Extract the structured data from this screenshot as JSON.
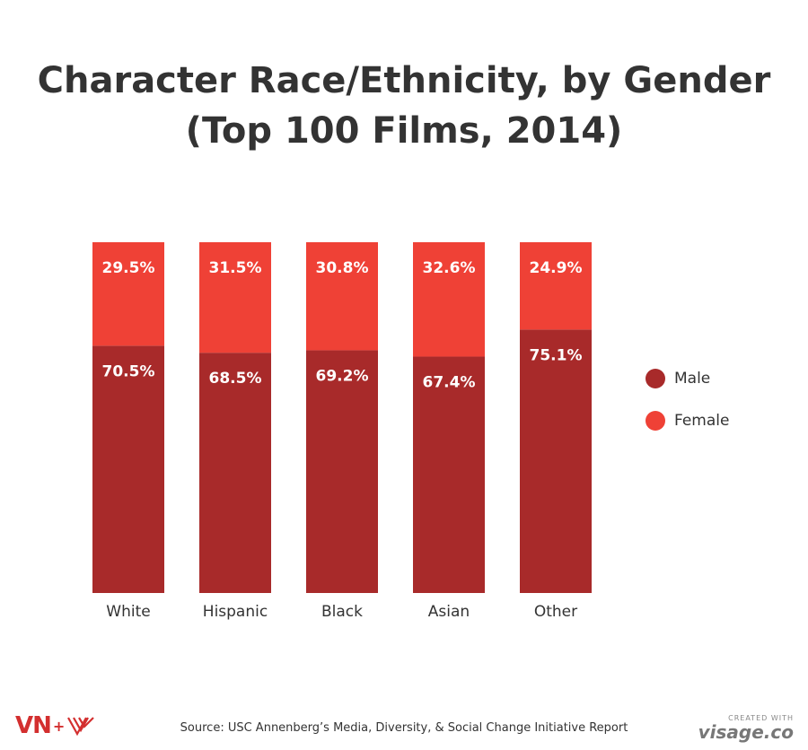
{
  "title": "Character Race/Ethnicity, by Gender (Top 100 Films, 2014)",
  "legend": [
    {
      "name": "Male",
      "color": "#a82a2a"
    },
    {
      "name": "Female",
      "color": "#ef4136"
    }
  ],
  "source": "Source: USC Annenberg’s Media, Diversity, & Social Change Initiative Report",
  "branding": {
    "vn_text": "VN",
    "vn_plus": "+",
    "created_with": "CREATED WITH",
    "visage": "visage.co"
  },
  "chart_data": {
    "type": "bar",
    "stacked": true,
    "categories": [
      "White",
      "Hispanic",
      "Black",
      "Asian",
      "Other"
    ],
    "series": [
      {
        "name": "Male",
        "values": [
          70.5,
          68.5,
          69.2,
          67.4,
          75.1
        ],
        "labels": [
          "70.5%",
          "68.5%",
          "69.2%",
          "67.4%",
          "75.1%"
        ],
        "color": "#a82a2a"
      },
      {
        "name": "Female",
        "values": [
          29.5,
          31.5,
          30.8,
          32.6,
          24.9
        ],
        "labels": [
          "29.5%",
          "31.5%",
          "30.8%",
          "32.6%",
          "24.9%"
        ],
        "color": "#ef4136"
      }
    ],
    "title": "Character Race/Ethnicity, by Gender (Top 100 Films, 2014)",
    "ylim": [
      0,
      100
    ],
    "grid": false,
    "legend_position": "right"
  }
}
